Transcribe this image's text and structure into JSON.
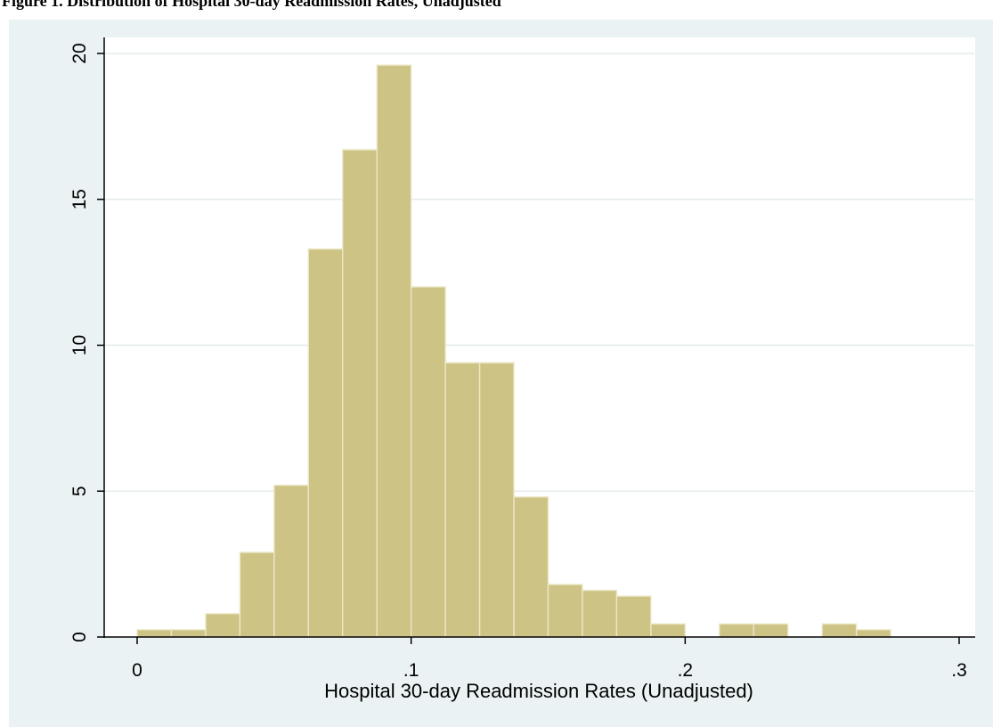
{
  "caption": {
    "text": "Figure 1. Distribution of Hospital 30-day Readmission Rates, Unadjusted"
  },
  "colors": {
    "background": "#eaf2f3",
    "plot_area": "#ffffff",
    "bar_fill": "#cdc385",
    "bar_stroke": "#ece7c8",
    "gridline": "#e3ebec",
    "axis": "#000000"
  },
  "chart_data": {
    "type": "bar",
    "subtype": "histogram",
    "xlabel": "Hospital 30-day Readmission Rates (Unadjusted)",
    "ylabel": "",
    "xlim": [
      0,
      0.3
    ],
    "ylim": [
      0,
      20
    ],
    "grid": true,
    "x_ticks": [
      {
        "value": 0,
        "label": "0"
      },
      {
        "value": 0.1,
        "label": ".1"
      },
      {
        "value": 0.2,
        "label": ".2"
      },
      {
        "value": 0.3,
        "label": ".3"
      }
    ],
    "y_ticks": [
      {
        "value": 0,
        "label": "0"
      },
      {
        "value": 5,
        "label": "5"
      },
      {
        "value": 10,
        "label": "10"
      },
      {
        "value": 15,
        "label": "15"
      },
      {
        "value": 20,
        "label": "20"
      }
    ],
    "bins": [
      {
        "x0": 0.0,
        "x1": 0.0125,
        "value": 0.25
      },
      {
        "x0": 0.0125,
        "x1": 0.025,
        "value": 0.25
      },
      {
        "x0": 0.025,
        "x1": 0.0375,
        "value": 0.8
      },
      {
        "x0": 0.0375,
        "x1": 0.05,
        "value": 2.9
      },
      {
        "x0": 0.05,
        "x1": 0.0625,
        "value": 5.2
      },
      {
        "x0": 0.0625,
        "x1": 0.075,
        "value": 13.3
      },
      {
        "x0": 0.075,
        "x1": 0.0875,
        "value": 16.7
      },
      {
        "x0": 0.0875,
        "x1": 0.1,
        "value": 19.6
      },
      {
        "x0": 0.1,
        "x1": 0.1125,
        "value": 12.0
      },
      {
        "x0": 0.1125,
        "x1": 0.125,
        "value": 9.4
      },
      {
        "x0": 0.125,
        "x1": 0.1375,
        "value": 9.4
      },
      {
        "x0": 0.1375,
        "x1": 0.15,
        "value": 4.8
      },
      {
        "x0": 0.15,
        "x1": 0.1625,
        "value": 1.8
      },
      {
        "x0": 0.1625,
        "x1": 0.175,
        "value": 1.6
      },
      {
        "x0": 0.175,
        "x1": 0.1875,
        "value": 1.4
      },
      {
        "x0": 0.1875,
        "x1": 0.2,
        "value": 0.45
      },
      {
        "x0": 0.2,
        "x1": 0.2125,
        "value": 0
      },
      {
        "x0": 0.2125,
        "x1": 0.225,
        "value": 0.45
      },
      {
        "x0": 0.225,
        "x1": 0.2375,
        "value": 0.45
      },
      {
        "x0": 0.2375,
        "x1": 0.25,
        "value": 0
      },
      {
        "x0": 0.25,
        "x1": 0.2625,
        "value": 0.45
      },
      {
        "x0": 0.2625,
        "x1": 0.275,
        "value": 0.25
      }
    ]
  }
}
